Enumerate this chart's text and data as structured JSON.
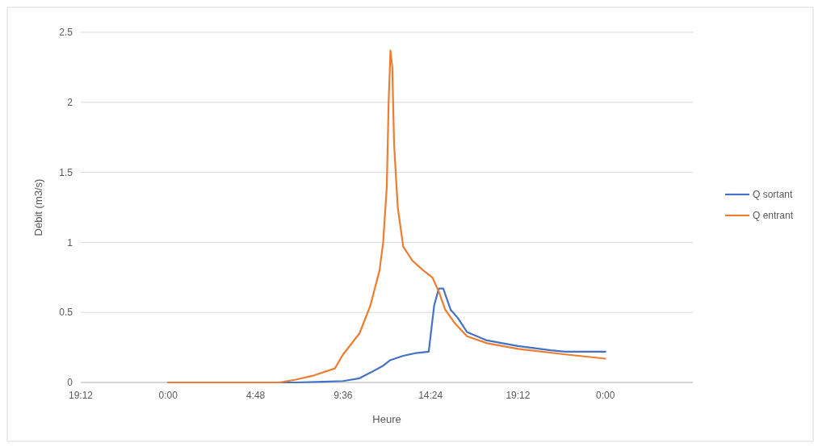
{
  "chart_data": {
    "type": "line",
    "xlabel": "Heure",
    "ylabel": "Débit (m3/s)",
    "xlim": [
      "2000-01-01T19:12",
      "2000-01-03T04:48"
    ],
    "xticks": [
      {
        "value": "2000-01-01T19:12",
        "label": "19:12"
      },
      {
        "value": "2000-01-02T00:00",
        "label": "0:00"
      },
      {
        "value": "2000-01-02T04:48",
        "label": "4:48"
      },
      {
        "value": "2000-01-02T09:36",
        "label": "9:36"
      },
      {
        "value": "2000-01-02T14:24",
        "label": "14:24"
      },
      {
        "value": "2000-01-02T19:12",
        "label": "19:12"
      },
      {
        "value": "2000-01-03T00:00",
        "label": "0:00"
      }
    ],
    "ylim": [
      0,
      2.5
    ],
    "yticks": [
      0,
      0.5,
      1,
      1.5,
      2,
      2.5
    ],
    "grid": "y",
    "legend": "right",
    "line_style": "solid",
    "marker": "none",
    "series": [
      {
        "name": "Q sortant",
        "color": "#4472c4",
        "x": [
          "2000-01-02T00:00",
          "2000-01-02T06:06",
          "2000-01-02T07:00",
          "2000-01-02T08:30",
          "2000-01-02T09:36",
          "2000-01-02T10:30",
          "2000-01-02T11:06",
          "2000-01-02T11:48",
          "2000-01-02T12:12",
          "2000-01-02T12:54",
          "2000-01-02T13:36",
          "2000-01-02T14:18",
          "2000-01-02T14:36",
          "2000-01-02T14:51",
          "2000-01-02T15:06",
          "2000-01-02T15:30",
          "2000-01-02T15:54",
          "2000-01-02T16:24",
          "2000-01-02T17:30",
          "2000-01-02T19:12",
          "2000-01-02T21:00",
          "2000-01-02T21:48",
          "2000-01-03T00:00"
        ],
        "values": [
          0,
          0,
          0,
          0.005,
          0.01,
          0.03,
          0.07,
          0.12,
          0.16,
          0.19,
          0.21,
          0.22,
          0.55,
          0.67,
          0.67,
          0.52,
          0.46,
          0.36,
          0.3,
          0.26,
          0.23,
          0.22,
          0.22
        ]
      },
      {
        "name": "Q entrant",
        "color": "#ed7d31",
        "x": [
          "2000-01-02T00:00",
          "2000-01-02T06:06",
          "2000-01-02T07:00",
          "2000-01-02T08:00",
          "2000-01-02T09:09",
          "2000-01-02T09:36",
          "2000-01-02T10:30",
          "2000-01-02T11:06",
          "2000-01-02T11:36",
          "2000-01-02T11:48",
          "2000-01-02T12:00",
          "2000-01-02T12:06",
          "2000-01-02T12:12",
          "2000-01-02T12:18",
          "2000-01-02T12:24",
          "2000-01-02T12:36",
          "2000-01-02T12:54",
          "2000-01-02T13:24",
          "2000-01-02T14:00",
          "2000-01-02T14:30",
          "2000-01-02T14:51",
          "2000-01-02T15:12",
          "2000-01-02T15:45",
          "2000-01-02T16:24",
          "2000-01-02T17:30",
          "2000-01-02T19:12",
          "2000-01-02T21:48",
          "2000-01-03T00:00"
        ],
        "values": [
          0,
          0,
          0.02,
          0.05,
          0.1,
          0.2,
          0.35,
          0.55,
          0.8,
          1.0,
          1.4,
          2.0,
          2.37,
          2.25,
          1.7,
          1.25,
          0.97,
          0.87,
          0.8,
          0.75,
          0.65,
          0.52,
          0.42,
          0.33,
          0.28,
          0.24,
          0.2,
          0.17
        ]
      }
    ]
  }
}
